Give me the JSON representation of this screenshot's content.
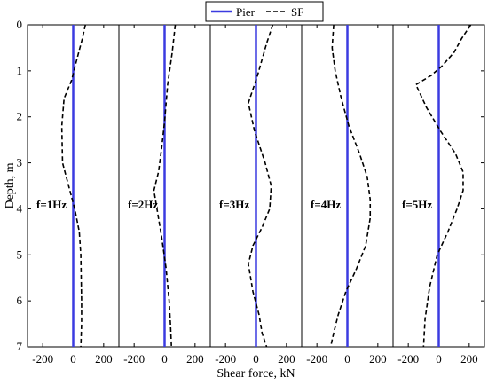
{
  "chart_data": {
    "type": "line",
    "xlabel": "Shear force, kN",
    "ylabel": "Depth, m",
    "xlim": [
      -300,
      300
    ],
    "ylim": [
      0,
      7
    ],
    "y_reversed": true,
    "xticks": [
      -200,
      0,
      200
    ],
    "xtick_labels": [
      "-200",
      "0",
      "200"
    ],
    "yticks": [
      0,
      1,
      2,
      3,
      4,
      5,
      6,
      7
    ],
    "ytick_labels": [
      "0",
      "1",
      "2",
      "3",
      "4",
      "5",
      "6",
      "7"
    ],
    "grid": false,
    "legend": {
      "placement": "top-center",
      "entries": [
        {
          "label": "Pier",
          "color": "#3b3be0",
          "style": "solid"
        },
        {
          "label": "SF",
          "color": "#000000",
          "style": "dashed"
        }
      ]
    },
    "panels": [
      {
        "label": "f=1Hz",
        "series": [
          {
            "name": "Pier",
            "x": [
              0,
              0
            ],
            "y": [
              0,
              7
            ]
          },
          {
            "name": "SF",
            "x": [
              80,
              60,
              20,
              -10,
              -60,
              -75,
              -70,
              -30,
              10,
              40,
              50,
              55,
              55,
              50
            ],
            "y": [
              0,
              0.3,
              0.8,
              1.2,
              1.6,
              2.2,
              3.0,
              3.5,
              4.0,
              4.5,
              5.0,
              6.0,
              6.5,
              7.0
            ]
          }
        ]
      },
      {
        "label": "f=2Hz",
        "series": [
          {
            "name": "Pier",
            "x": [
              0,
              0
            ],
            "y": [
              0,
              7
            ]
          },
          {
            "name": "SF",
            "x": [
              70,
              50,
              20,
              0,
              -20,
              -40,
              -70,
              -50,
              -20,
              10,
              30,
              40,
              45
            ],
            "y": [
              0,
              0.6,
              1.3,
              2.1,
              2.7,
              3.2,
              3.6,
              4.0,
              4.6,
              5.3,
              6.0,
              6.6,
              7.0
            ]
          }
        ]
      },
      {
        "label": "f=3Hz",
        "series": [
          {
            "name": "Pier",
            "x": [
              0,
              0
            ],
            "y": [
              0,
              7
            ]
          },
          {
            "name": "SF",
            "x": [
              110,
              70,
              10,
              -50,
              -10,
              60,
              100,
              90,
              40,
              -20,
              -50,
              -20,
              20,
              40,
              70
            ],
            "y": [
              0,
              0.4,
              1.1,
              1.7,
              2.3,
              3.0,
              3.5,
              4.0,
              4.4,
              4.8,
              5.2,
              5.8,
              6.3,
              6.7,
              7.0
            ]
          }
        ]
      },
      {
        "label": "f=4Hz",
        "series": [
          {
            "name": "Pier",
            "x": [
              0,
              0
            ],
            "y": [
              0,
              7
            ]
          },
          {
            "name": "SF",
            "x": [
              -90,
              -100,
              -80,
              -40,
              10,
              80,
              130,
              150,
              150,
              120,
              60,
              -10,
              -60,
              -90,
              -110
            ],
            "y": [
              0,
              0.5,
              1.0,
              1.6,
              2.2,
              2.8,
              3.3,
              3.8,
              4.2,
              4.8,
              5.3,
              5.8,
              6.3,
              6.7,
              7.0
            ]
          }
        ]
      },
      {
        "label": "f=5Hz",
        "series": [
          {
            "name": "Pier",
            "x": [
              0,
              0
            ],
            "y": [
              0,
              7
            ]
          },
          {
            "name": "SF",
            "x": [
              210,
              150,
              100,
              20,
              -50,
              -150,
              -80,
              10,
              110,
              160,
              160,
              120,
              60,
              -10,
              -60,
              -90,
              -100
            ],
            "y": [
              0,
              0.3,
              0.6,
              0.9,
              1.1,
              1.3,
              1.8,
              2.3,
              2.8,
              3.2,
              3.6,
              4.0,
              4.5,
              5.0,
              5.7,
              6.4,
              7.0
            ]
          }
        ]
      }
    ]
  }
}
